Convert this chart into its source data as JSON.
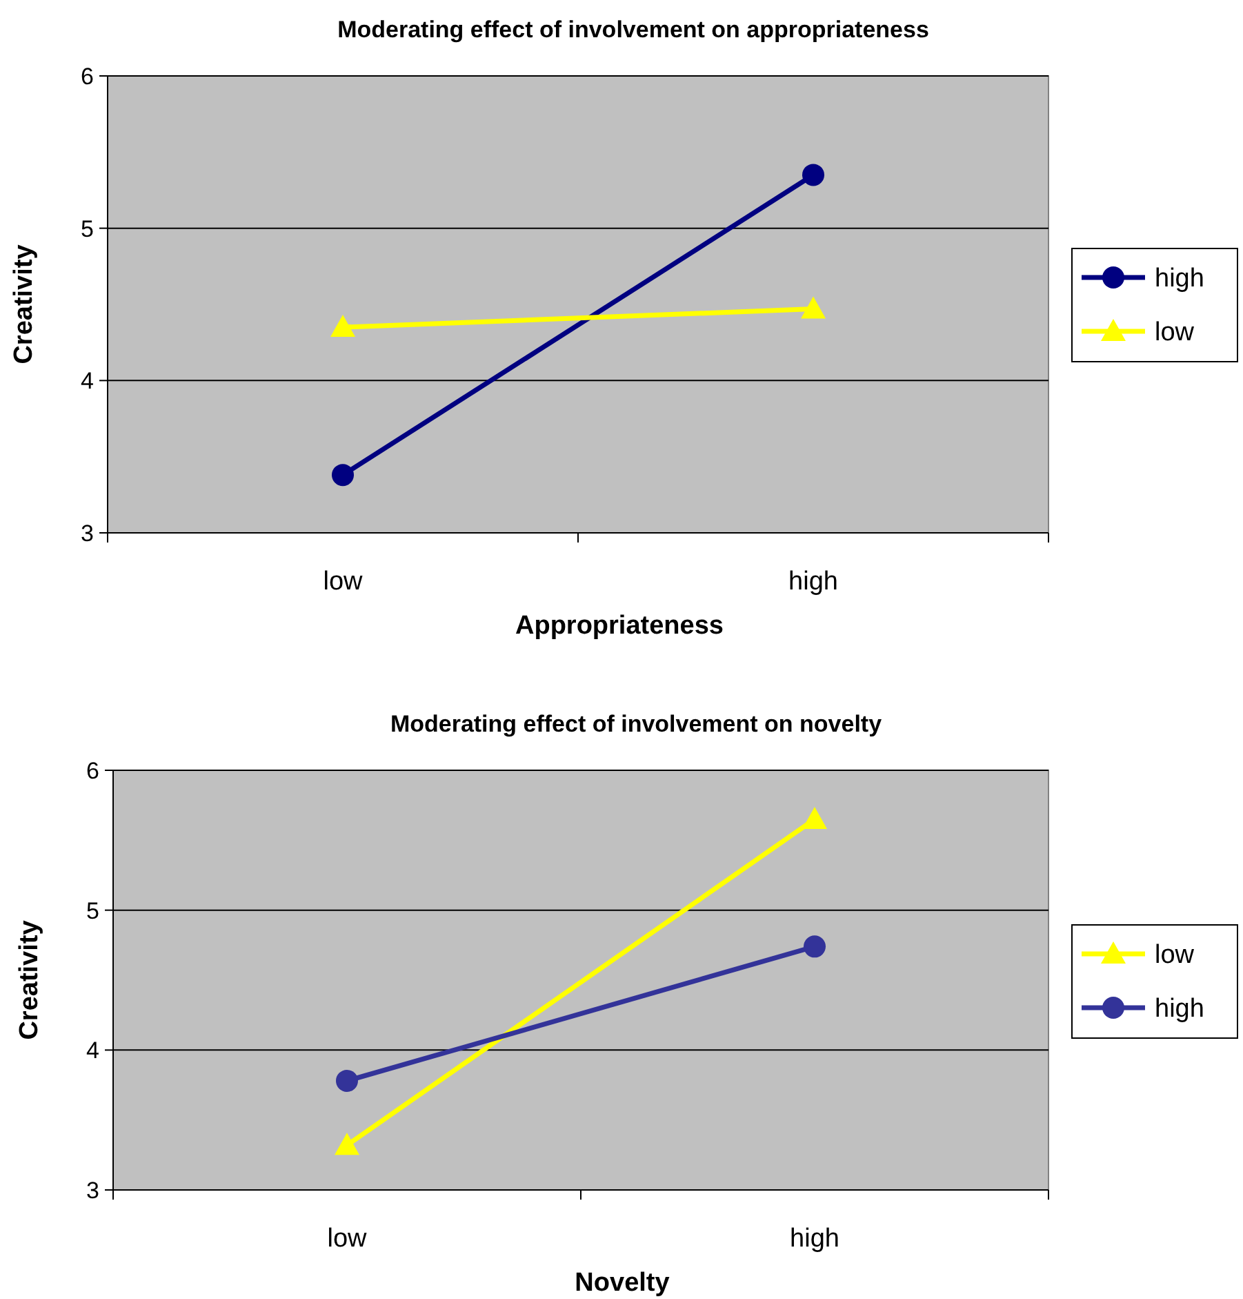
{
  "chart_data": [
    {
      "type": "line",
      "title": "Moderating effect of involvement on appropriateness",
      "xlabel": "Appropriateness",
      "ylabel": "Creativity",
      "categories": [
        "low",
        "high"
      ],
      "series": [
        {
          "name": "high",
          "color": "#000080",
          "marker": "circle",
          "values": [
            3.38,
            5.35
          ]
        },
        {
          "name": "low",
          "color": "#ffff00",
          "marker": "triangle",
          "values": [
            4.35,
            4.47
          ]
        }
      ],
      "ylim": [
        3,
        6
      ],
      "yticks": [
        3,
        4,
        5,
        6
      ],
      "grid": "y",
      "legend": "right"
    },
    {
      "type": "line",
      "title": "Moderating effect of involvement on novelty",
      "xlabel": "Novelty",
      "ylabel": "Creativity",
      "categories": [
        "low",
        "high"
      ],
      "series": [
        {
          "name": "low",
          "color": "#ffff00",
          "marker": "triangle",
          "values": [
            3.32,
            5.65
          ]
        },
        {
          "name": "high",
          "color": "#333399",
          "marker": "circle",
          "values": [
            3.78,
            4.74
          ]
        }
      ],
      "ylim": [
        3,
        6
      ],
      "yticks": [
        3,
        4,
        5,
        6
      ],
      "grid": "y",
      "legend": "right"
    }
  ]
}
